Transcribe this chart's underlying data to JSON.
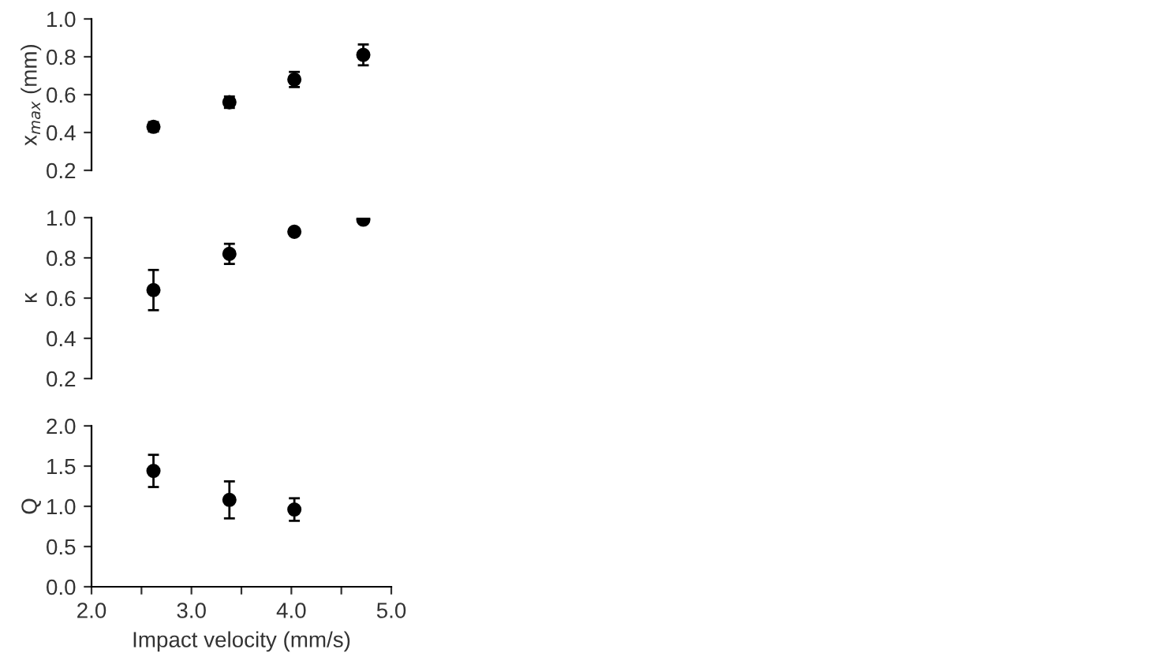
{
  "chart_data": [
    {
      "type": "scatter",
      "x": [
        2.62,
        3.38,
        4.03,
        4.72
      ],
      "values": [
        0.43,
        0.56,
        0.68,
        0.81
      ],
      "errors": [
        0.025,
        0.03,
        0.04,
        0.055
      ],
      "color": "#000000",
      "marker": "circle",
      "ylabel": "x$_{max}$ (mm)",
      "xlim": [
        2.0,
        5.0
      ],
      "ylim": [
        0.2,
        1.0
      ],
      "yticks": [
        0.2,
        0.4,
        0.6,
        0.8,
        {
          "value": 1,
          "label": "1.0"
        }
      ],
      "tick_labels": "y"
    },
    {
      "type": "scatter",
      "x": [
        2.62,
        3.38,
        4.03,
        4.72
      ],
      "values": [
        0.64,
        0.82,
        0.93,
        0.99
      ],
      "errors": [
        0.1,
        0.05,
        null,
        null
      ],
      "color": "#000000",
      "marker": "circle",
      "ylabel": "κ",
      "xlim": [
        2.0,
        5.0
      ],
      "ylim": [
        0.2,
        1.0
      ],
      "yticks": [
        0.2,
        0.4,
        0.6,
        0.8,
        {
          "value": 1,
          "label": "1.0"
        }
      ],
      "tick_labels": "y"
    },
    {
      "type": "scatter",
      "x": [
        2.62,
        3.38,
        4.03
      ],
      "values": [
        1.44,
        1.08,
        0.96
      ],
      "errors": [
        0.2,
        0.23,
        0.14
      ],
      "color": "#000000",
      "marker": "circle",
      "ylabel": "Q",
      "xlabel": "Impact velocity (mm/s)",
      "xlim": [
        2.0,
        5.0
      ],
      "xticks": [
        {
          "value": 2,
          "label": "2.0"
        },
        {
          "value": 2.5,
          "label": null
        },
        {
          "value": 3,
          "label": "3.0"
        },
        {
          "value": 3.5,
          "label": null
        },
        {
          "value": 4,
          "label": "4.0"
        },
        {
          "value": 4.5,
          "label": null
        },
        {
          "value": 5,
          "label": "5.0"
        }
      ],
      "ylim": [
        0.0,
        2.0
      ],
      "yticks": [
        {
          "value": 0,
          "label": "0.0"
        },
        0.5,
        {
          "value": 1,
          "label": "1.0"
        },
        1.5,
        {
          "value": 2,
          "label": "2.0"
        }
      ]
    }
  ]
}
